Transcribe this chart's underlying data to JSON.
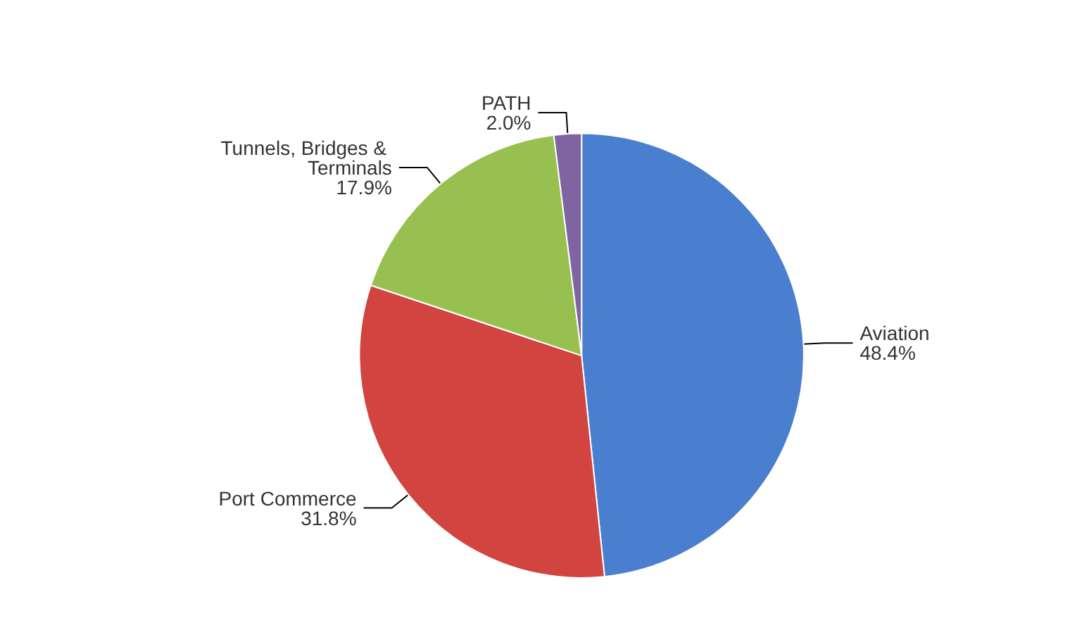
{
  "chart_data": {
    "type": "pie",
    "categories": [
      "Aviation",
      "Port Commerce",
      "Tunnels, Bridges & Terminals",
      "PATH"
    ],
    "values": [
      48.4,
      31.8,
      17.9,
      2.0
    ],
    "colors": [
      "#4a7fd0",
      "#d24440",
      "#98c050",
      "#8064a2"
    ],
    "value_labels": [
      "48.4%",
      "31.8%",
      "17.9%",
      "2.0%"
    ],
    "legend": false
  }
}
